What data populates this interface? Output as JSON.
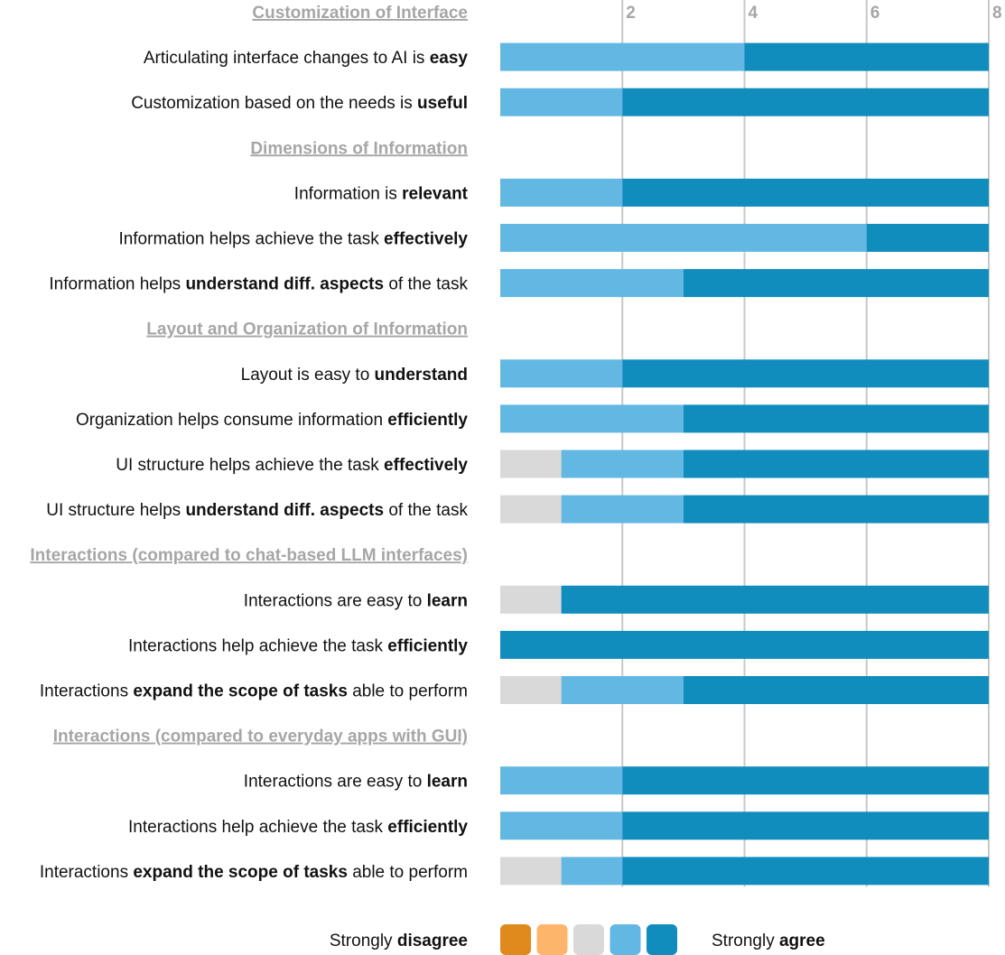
{
  "colors": {
    "strongly_disagree": "#e08a1e",
    "disagree": "#fdb56b",
    "neutral": "#d9d9d9",
    "agree": "#62b8e3",
    "strongly_agree": "#108dbd",
    "grid": "#c8c8c8",
    "section_text": "#a6a6a6"
  },
  "legend": {
    "left": [
      {
        "text": "Strongly ",
        "bold": false
      },
      {
        "text": "disagree",
        "bold": true
      }
    ],
    "right": [
      {
        "text": "Strongly ",
        "bold": false
      },
      {
        "text": "agree",
        "bold": true
      }
    ],
    "swatches": [
      "strongly_disagree",
      "disagree",
      "neutral",
      "agree",
      "strongly_agree"
    ]
  },
  "chart_data": {
    "type": "bar",
    "orientation": "horizontal-stacked",
    "xlim": [
      0,
      8
    ],
    "xticks": [
      2,
      4,
      6,
      8
    ],
    "grid": true,
    "legend_position": "bottom",
    "series_order": [
      "strongly_disagree",
      "disagree",
      "neutral",
      "agree",
      "strongly_agree"
    ],
    "rows": [
      {
        "kind": "section",
        "text": "Customization of Interface"
      },
      {
        "kind": "item",
        "parts": [
          {
            "text": "Articulating interface changes to AI is ",
            "bold": false
          },
          {
            "text": "easy",
            "bold": true
          }
        ],
        "values": [
          0,
          0,
          0,
          4,
          4
        ]
      },
      {
        "kind": "item",
        "parts": [
          {
            "text": "Customization based on the needs is ",
            "bold": false
          },
          {
            "text": "useful",
            "bold": true
          }
        ],
        "values": [
          0,
          0,
          0,
          2,
          6
        ]
      },
      {
        "kind": "section",
        "text": "Dimensions of Information"
      },
      {
        "kind": "item",
        "parts": [
          {
            "text": "Information is ",
            "bold": false
          },
          {
            "text": "relevant",
            "bold": true
          }
        ],
        "values": [
          0,
          0,
          0,
          2,
          6
        ]
      },
      {
        "kind": "item",
        "parts": [
          {
            "text": "Information helps achieve the task ",
            "bold": false
          },
          {
            "text": "effectively",
            "bold": true
          }
        ],
        "values": [
          0,
          0,
          0,
          6,
          2
        ]
      },
      {
        "kind": "item",
        "parts": [
          {
            "text": "Information helps ",
            "bold": false
          },
          {
            "text": "understand diff. aspects",
            "bold": true
          },
          {
            "text": " of the task",
            "bold": false
          }
        ],
        "values": [
          0,
          0,
          0,
          3,
          5
        ]
      },
      {
        "kind": "section",
        "text": "Layout and Organization of Information"
      },
      {
        "kind": "item",
        "parts": [
          {
            "text": "Layout is easy to ",
            "bold": false
          },
          {
            "text": "understand",
            "bold": true
          }
        ],
        "values": [
          0,
          0,
          0,
          2,
          6
        ]
      },
      {
        "kind": "item",
        "parts": [
          {
            "text": "Organization helps consume information ",
            "bold": false
          },
          {
            "text": "efficiently",
            "bold": true
          }
        ],
        "values": [
          0,
          0,
          0,
          3,
          5
        ]
      },
      {
        "kind": "item",
        "parts": [
          {
            "text": "UI structure helps achieve the task ",
            "bold": false
          },
          {
            "text": "effectively",
            "bold": true
          }
        ],
        "values": [
          0,
          0,
          1,
          2,
          5
        ]
      },
      {
        "kind": "item",
        "parts": [
          {
            "text": "UI structure helps ",
            "bold": false
          },
          {
            "text": "understand diff. aspects",
            "bold": true
          },
          {
            "text": " of the task",
            "bold": false
          }
        ],
        "values": [
          0,
          0,
          1,
          2,
          5
        ]
      },
      {
        "kind": "section",
        "text": "Interactions (compared to chat-based LLM interfaces)"
      },
      {
        "kind": "item",
        "parts": [
          {
            "text": "Interactions are easy to ",
            "bold": false
          },
          {
            "text": "learn",
            "bold": true
          }
        ],
        "values": [
          0,
          0,
          1,
          0,
          7
        ]
      },
      {
        "kind": "item",
        "parts": [
          {
            "text": "Interactions help achieve the task ",
            "bold": false
          },
          {
            "text": "efficiently",
            "bold": true
          }
        ],
        "values": [
          0,
          0,
          0,
          0,
          8
        ]
      },
      {
        "kind": "item",
        "parts": [
          {
            "text": "Interactions ",
            "bold": false
          },
          {
            "text": "expand the scope of tasks",
            "bold": true
          },
          {
            "text": " able to perform",
            "bold": false
          }
        ],
        "values": [
          0,
          0,
          1,
          2,
          5
        ]
      },
      {
        "kind": "section",
        "text": "Interactions (compared to everyday apps with GUI)"
      },
      {
        "kind": "item",
        "parts": [
          {
            "text": "Interactions are easy to ",
            "bold": false
          },
          {
            "text": "learn",
            "bold": true
          }
        ],
        "values": [
          0,
          0,
          0,
          2,
          6
        ]
      },
      {
        "kind": "item",
        "parts": [
          {
            "text": "Interactions help achieve the task ",
            "bold": false
          },
          {
            "text": "efficiently",
            "bold": true
          }
        ],
        "values": [
          0,
          0,
          0,
          2,
          6
        ]
      },
      {
        "kind": "item",
        "parts": [
          {
            "text": "Interactions ",
            "bold": false
          },
          {
            "text": "expand the scope of tasks",
            "bold": true
          },
          {
            "text": " able to perform",
            "bold": false
          }
        ],
        "values": [
          0,
          0,
          1,
          1,
          6
        ]
      }
    ]
  }
}
